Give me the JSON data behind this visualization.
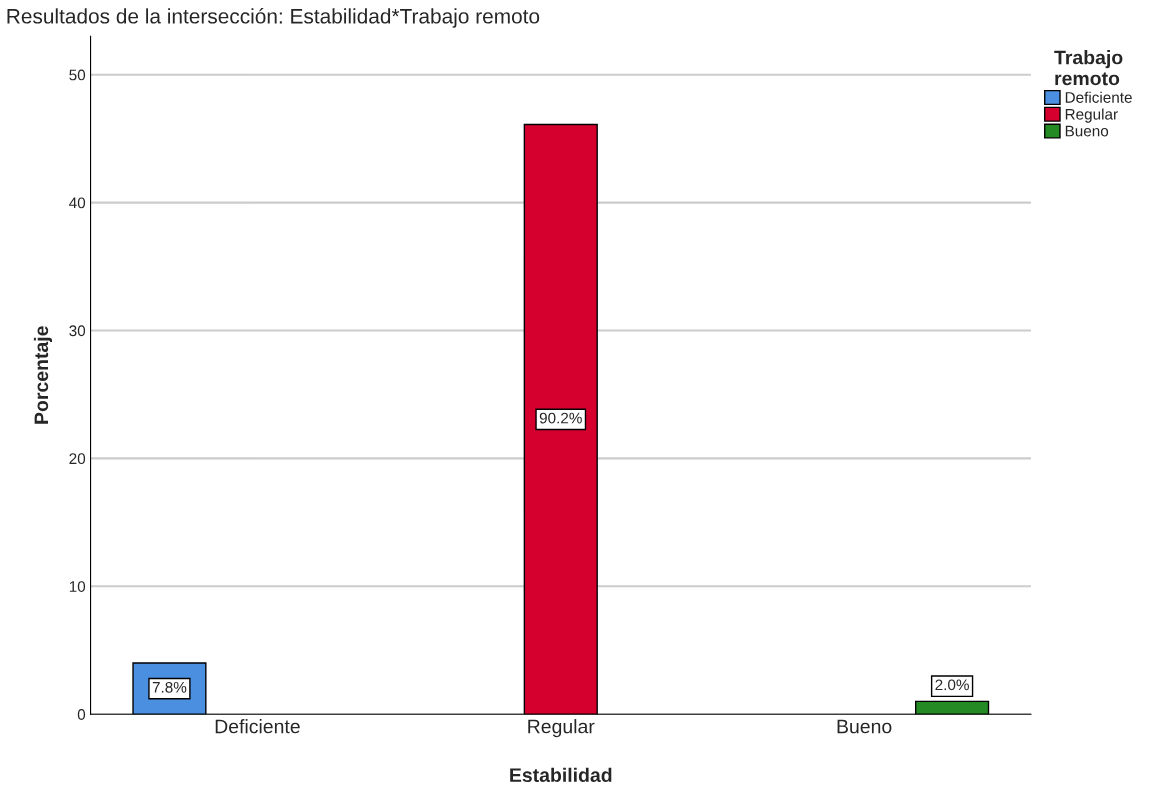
{
  "chart_data": {
    "type": "bar",
    "title": "Resultados de la intersección: Estabilidad*Trabajo remoto",
    "xlabel": "Estabilidad",
    "ylabel": "Porcentaje",
    "legend_title": "Trabajo\nremoto",
    "categories": [
      "Deficiente",
      "Regular",
      "Bueno"
    ],
    "series": [
      {
        "name": "Deficiente",
        "color": "#4a8fe0",
        "values": [
          4.0,
          null,
          null
        ]
      },
      {
        "name": "Regular",
        "color": "#d6002f",
        "values": [
          null,
          46.1,
          null
        ]
      },
      {
        "name": "Bueno",
        "color": "#248a24",
        "values": [
          null,
          null,
          1.0
        ]
      }
    ],
    "annotations": [
      "7.8%",
      "90.2%",
      "2.0%"
    ],
    "ylim": [
      0,
      53
    ],
    "yticks": [
      0,
      10,
      20,
      30,
      40,
      50
    ],
    "grid": "y",
    "legend": "top right"
  }
}
